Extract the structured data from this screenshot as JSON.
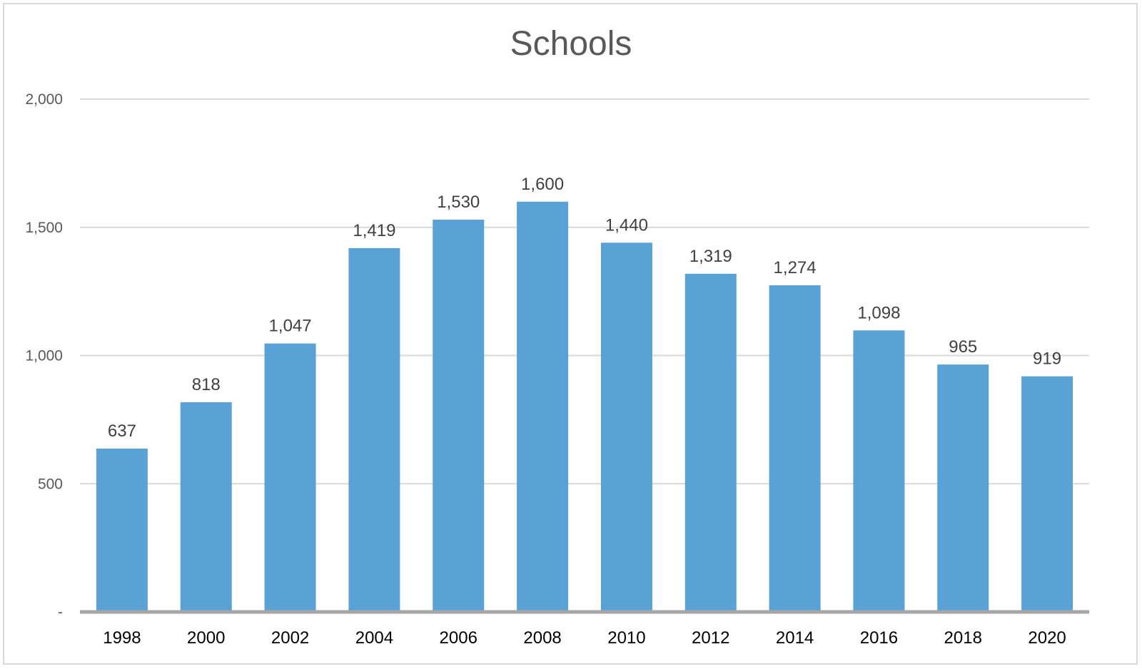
{
  "chart_data": {
    "type": "bar",
    "title": "Schools",
    "xlabel": "",
    "ylabel": "",
    "categories": [
      "1998",
      "2000",
      "2002",
      "2004",
      "2006",
      "2008",
      "2010",
      "2012",
      "2014",
      "2016",
      "2018",
      "2020"
    ],
    "values": [
      637,
      818,
      1047,
      1419,
      1530,
      1600,
      1440,
      1319,
      1274,
      1098,
      965,
      919
    ],
    "data_labels": [
      "637",
      "818",
      "1,047",
      "1,419",
      "1,530",
      "1,600",
      "1,440",
      "1,319",
      "1,274",
      "1,098",
      "965",
      "919"
    ],
    "ylim": [
      0,
      2000
    ],
    "yticks": [
      0,
      500,
      1000,
      1500,
      2000
    ],
    "ytick_labels": [
      "-",
      "500",
      "1,000",
      "1,500",
      "2,000"
    ],
    "grid": true,
    "legend": "none",
    "colors": {
      "bar": "#5aa2d6",
      "grid": "#d9d9d9",
      "axis": "#a6a6a6"
    }
  }
}
